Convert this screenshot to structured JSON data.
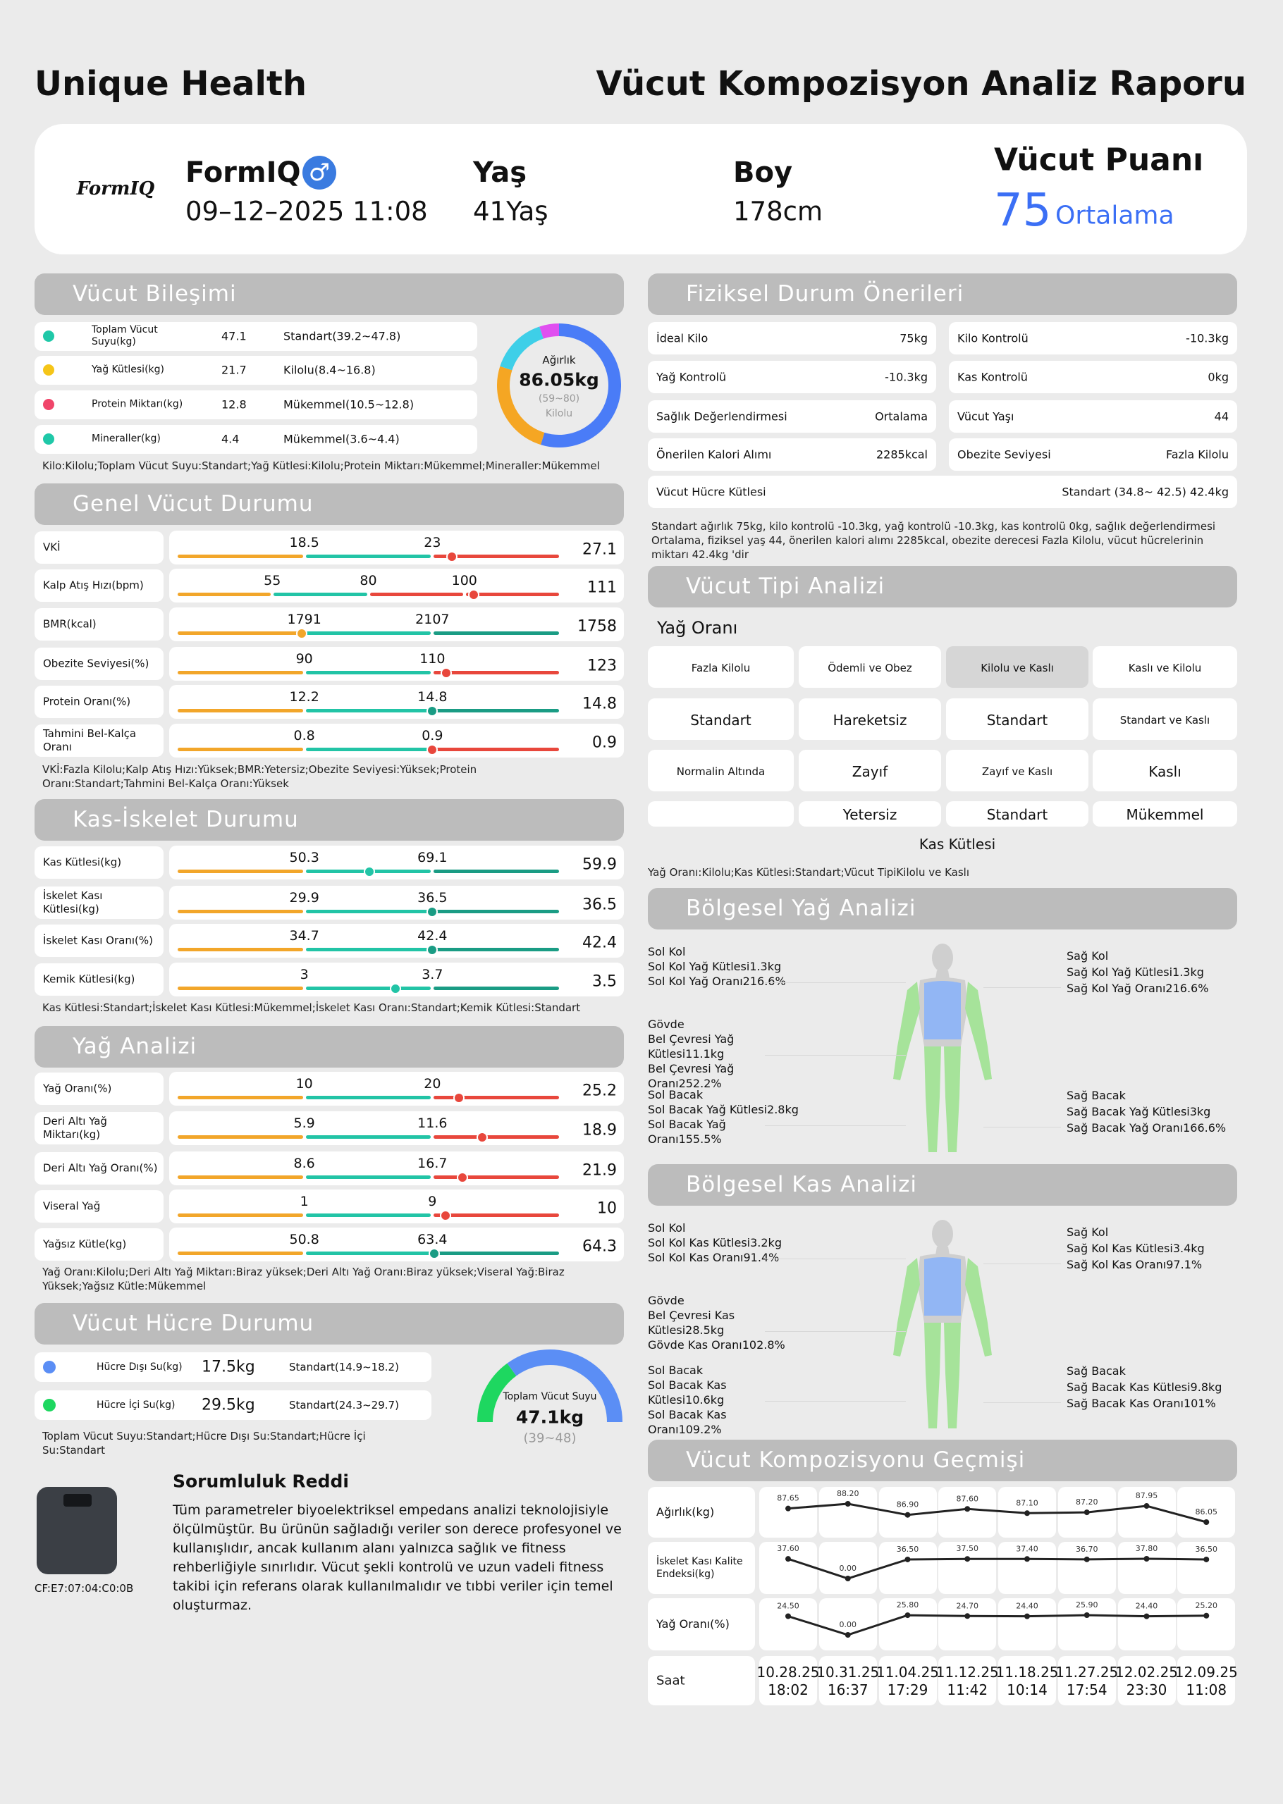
{
  "header": {
    "brand": "Unique Health",
    "title": "Vücut Kompozisyon Analiz Raporu"
  },
  "profile": {
    "logo": "FormIQ",
    "name": "FormIQ",
    "gender": "♂",
    "datetime": "09–12–2025 11:08",
    "age_label": "Yaş",
    "age": "41Yaş",
    "height_label": "Boy",
    "height": "178cm",
    "score_label": "Vücut Puanı",
    "score": 75,
    "score_level": "Ortalama"
  },
  "body_composition": {
    "title": "Vücut Bileşimi",
    "rows": [
      {
        "name": "Toplam Vücut Suyu(kg)",
        "value": 47.1,
        "status": "Standart(39.2~47.8)",
        "color": "#1fc8a8"
      },
      {
        "name": "Yağ Kütlesi(kg)",
        "value": 21.7,
        "status": "Kilolu(8.4~16.8)",
        "color": "#f5c518"
      },
      {
        "name": "Protein Miktarı(kg)",
        "value": 12.8,
        "status": "Mükemmel(10.5~12.8)",
        "color": "#f0456a"
      },
      {
        "name": "Mineraller(kg)",
        "value": 4.4,
        "status": "Mükemmel(3.6~4.4)",
        "color": "#1fc8a8"
      }
    ],
    "donut": {
      "label": "Ağırlık",
      "value": "86.05kg",
      "range": "(59~80)",
      "status": "Kilolu",
      "colors": [
        "#4a7cf7",
        "#f5a623",
        "#3ecfe8",
        "#e04ff0"
      ]
    },
    "summary": "Kilo:Kilolu;Toplam Vücut Suyu:Standart;Yağ Kütlesi:Kilolu;Protein Miktarı:Mükemmel;Mineraller:Mükemmel"
  },
  "general": {
    "title": "Genel Vücut Durumu",
    "rows": [
      {
        "name": "VKİ",
        "thresholds": [
          18.5,
          23
        ],
        "value": 27.1,
        "colors": [
          "#f2a62a",
          "#22c4a6",
          "#e8473c"
        ]
      },
      {
        "name": "Kalp Atış Hızı(bpm)",
        "thresholds": [
          55,
          80,
          100
        ],
        "value": 111,
        "colors": [
          "#f2a62a",
          "#22c4a6",
          "#e8473c",
          "#e8473c"
        ]
      },
      {
        "name": "BMR(kcal)",
        "thresholds": [
          1791,
          2107
        ],
        "value": 1758,
        "colors": [
          "#f2a62a",
          "#22c4a6",
          "#1a9c84"
        ]
      },
      {
        "name": "Obezite Seviyesi(%)",
        "thresholds": [
          90,
          110
        ],
        "value": 123,
        "colors": [
          "#f2a62a",
          "#22c4a6",
          "#e8473c"
        ]
      },
      {
        "name": "Protein Oranı(%)",
        "thresholds": [
          12.2,
          14.8
        ],
        "value": 14.8,
        "colors": [
          "#f2a62a",
          "#22c4a6",
          "#1a9c84"
        ]
      },
      {
        "name": "Tahmini Bel-Kalça Oranı",
        "thresholds": [
          0.8,
          0.9
        ],
        "value": 0.9,
        "colors": [
          "#f2a62a",
          "#22c4a6",
          "#e8473c"
        ]
      }
    ],
    "summary": "VKİ:Fazla Kilolu;Kalp Atış Hızı:Yüksek;BMR:Yetersiz;Obezite Seviyesi:Yüksek;Protein Oranı:Standart;Tahmini Bel-Kalça Oranı:Yüksek"
  },
  "muscle": {
    "title": "Kas-İskelet Durumu",
    "rows": [
      {
        "name": "Kas Kütlesi(kg)",
        "thresholds": [
          50.3,
          69.1
        ],
        "value": 59.9,
        "colors": [
          "#f2a62a",
          "#22c4a6",
          "#1a9c84"
        ]
      },
      {
        "name": "İskelet Kası Kütlesi(kg)",
        "thresholds": [
          29.9,
          36.5
        ],
        "value": 36.5,
        "colors": [
          "#f2a62a",
          "#22c4a6",
          "#1a9c84"
        ]
      },
      {
        "name": "İskelet Kası Oranı(%)",
        "thresholds": [
          34.7,
          42.4
        ],
        "value": 42.4,
        "colors": [
          "#f2a62a",
          "#22c4a6",
          "#1a9c84"
        ]
      },
      {
        "name": "Kemik Kütlesi(kg)",
        "thresholds": [
          3,
          3.7
        ],
        "value": 3.5,
        "colors": [
          "#f2a62a",
          "#22c4a6",
          "#1a9c84"
        ]
      }
    ],
    "summary": "Kas Kütlesi:Standart;İskelet Kası Kütlesi:Mükemmel;İskelet Kası Oranı:Standart;Kemik Kütlesi:Standart"
  },
  "fat": {
    "title": "Yağ Analizi",
    "rows": [
      {
        "name": "Yağ Oranı(%)",
        "thresholds": [
          10,
          20
        ],
        "value": 25.2,
        "colors": [
          "#f2a62a",
          "#22c4a6",
          "#e8473c"
        ]
      },
      {
        "name": "Deri Altı Yağ Miktarı(kg)",
        "thresholds": [
          5.9,
          11.6
        ],
        "value": 18.9,
        "colors": [
          "#f2a62a",
          "#22c4a6",
          "#e8473c"
        ]
      },
      {
        "name": "Deri Altı Yağ Oranı(%)",
        "thresholds": [
          8.6,
          16.7
        ],
        "value": 21.9,
        "colors": [
          "#f2a62a",
          "#22c4a6",
          "#e8473c"
        ]
      },
      {
        "name": "Viseral Yağ",
        "thresholds": [
          1,
          9
        ],
        "value": 10,
        "colors": [
          "#f2a62a",
          "#22c4a6",
          "#e8473c"
        ]
      },
      {
        "name": "Yağsız Kütle(kg)",
        "thresholds": [
          50.8,
          63.4
        ],
        "value": 64.3,
        "colors": [
          "#f2a62a",
          "#22c4a6",
          "#1a9c84"
        ]
      }
    ],
    "summary": "Yağ Oranı:Kilolu;Deri Altı Yağ Miktarı:Biraz yüksek;Deri Altı Yağ Oranı:Biraz yüksek;Viseral Yağ:Biraz Yüksek;Yağsız Kütle:Mükemmel"
  },
  "cell": {
    "title": "Vücut Hücre Durumu",
    "rows": [
      {
        "name": "Hücre Dışı Su(kg)",
        "value": "17.5kg",
        "status": "Standart(14.9~18.2)",
        "color": "#5b8ef5"
      },
      {
        "name": "Hücre İçi Su(kg)",
        "value": "29.5kg",
        "status": "Standart(24.3~29.7)",
        "color": "#1ed760"
      }
    ],
    "gauge": {
      "label": "Toplam Vücut Suyu",
      "value": "47.1kg",
      "range": "(39~48)"
    },
    "summary": "Toplam Vücut Suyu:Standart;Hücre Dışı Su:Standart;Hücre İçi Su:Standart"
  },
  "disclaimer": {
    "title": "Sorumluluk Reddi",
    "text": "Tüm parametreler biyoelektriksel empedans analizi teknolojisiyle ölçülmüştür. Bu ürünün sağladığı veriler son derece profesyonel ve kullanışlıdır, ancak kullanım alanı yalnızca sağlık ve fitness rehberliğiyle sınırlıdır. Vücut şekli kontrolü ve uzun vadeli fitness takibi için referans olarak kullanılmalıdır ve tıbbi veriler için temel oluşturmaz.",
    "device_id": "CF:E7:07:04:C0:0B"
  },
  "recommendations": {
    "title": "Fiziksel Durum Önerileri",
    "items": [
      {
        "label": "İdeal Kilo",
        "value": "75kg"
      },
      {
        "label": "Kilo Kontrolü",
        "value": "-10.3kg"
      },
      {
        "label": "Yağ Kontrolü",
        "value": "-10.3kg"
      },
      {
        "label": "Kas Kontrolü",
        "value": "0kg"
      },
      {
        "label": "Sağlık Değerlendirmesi",
        "value": "Ortalama"
      },
      {
        "label": "Vücut Yaşı",
        "value": 44
      },
      {
        "label": "Önerilen Kalori Alımı",
        "value": "2285kcal"
      },
      {
        "label": "Obezite Seviyesi",
        "value": "Fazla Kilolu"
      },
      {
        "label": "Vücut Hücre Kütlesi",
        "value": "Standart (34.8~ 42.5) 42.4kg"
      }
    ],
    "summary": "Standart ağırlık 75kg, kilo kontrolü -10.3kg, yağ kontrolü -10.3kg, kas kontrolü 0kg, sağlık değerlendirmesi Ortalama, fiziksel yaş 44, önerilen kalori alımı 2285kcal, obezite derecesi Fazla Kilolu, vücut hücrelerinin miktarı 42.4kg 'dir"
  },
  "body_type": {
    "title": "Vücut Tipi Analizi",
    "y_label": "Yağ Oranı",
    "grid": [
      [
        "Fazla Kilolu",
        "Ödemli ve Obez",
        "Kilolu ve Kaslı",
        "Kaslı ve Kilolu"
      ],
      [
        "Standart",
        "Hareketsiz",
        "Standart",
        "Standart ve Kaslı"
      ],
      [
        "Normalin Altında",
        "Zayıf",
        "Zayıf ve Kaslı",
        "Kaslı"
      ]
    ],
    "x_labels": [
      "Yetersiz",
      "Standart",
      "Mükemmel"
    ],
    "x_label": "Kas Kütlesi",
    "highlight": {
      "row": 0,
      "col": 2
    },
    "summary": "Yağ Oranı:Kilolu;Kas Kütlesi:Standart;Vücut TipiKilolu ve Kaslı"
  },
  "regional_fat": {
    "title": "Bölgesel Yağ Analizi",
    "left": [
      [
        "Sol Kol",
        "Sol Kol Yağ Kütlesi1.3kg",
        "Sol Kol Yağ Oranı216.6%"
      ],
      [
        "Gövde",
        "Bel Çevresi Yağ Kütlesi11.1kg",
        "Bel Çevresi Yağ Oranı252.2%"
      ],
      [
        "Sol Bacak",
        "Sol Bacak Yağ Kütlesi2.8kg",
        "Sol Bacak Yağ Oranı155.5%"
      ]
    ],
    "right": [
      [
        "Sağ Kol",
        "Sağ Kol Yağ Kütlesi1.3kg",
        "Sağ Kol Yağ Oranı216.6%"
      ],
      [
        "Sağ Bacak",
        "Sağ Bacak Yağ Kütlesi3kg",
        "Sağ Bacak Yağ Oranı166.6%"
      ]
    ]
  },
  "regional_muscle": {
    "title": "Bölgesel Kas Analizi",
    "left": [
      [
        "Sol Kol",
        "Sol Kol Kas Kütlesi3.2kg",
        "Sol Kol Kas Oranı91.4%"
      ],
      [
        "Gövde",
        "Bel Çevresi Kas Kütlesi28.5kg",
        "Gövde Kas Oranı102.8%"
      ],
      [
        "Sol Bacak",
        "Sol Bacak Kas Kütlesi10.6kg",
        "Sol Bacak Kas Oranı109.2%"
      ]
    ],
    "right": [
      [
        "Sağ Kol",
        "Sağ Kol Kas Kütlesi3.4kg",
        "Sağ Kol Kas Oranı97.1%"
      ],
      [
        "Sağ Bacak",
        "Sağ Bacak Kas Kütlesi9.8kg",
        "Sağ Bacak Kas Oranı101%"
      ]
    ]
  },
  "history": {
    "type": "line",
    "title": "Vücut Kompozisyonu Geçmişi",
    "series": [
      {
        "name": "Ağırlık(kg)",
        "values": [
          87.65,
          88.2,
          86.9,
          87.6,
          87.1,
          87.2,
          87.95,
          86.05
        ],
        "value_labels": [
          "87.65",
          "88.20",
          "86.90",
          "87.60",
          "87.10",
          "87.20",
          "87.95",
          "86.05"
        ]
      },
      {
        "name": "İskelet Kası Kalite Endeksi(kg)",
        "values": [
          37.6,
          0,
          36.5,
          37.5,
          37.4,
          36.7,
          37.8,
          36.5
        ],
        "value_labels": [
          "37.60",
          "0.00",
          "36.50",
          "37.50",
          "37.40",
          "36.70",
          "37.80",
          "36.50"
        ]
      },
      {
        "name": "Yağ Oranı(%)",
        "values": [
          24.5,
          0,
          25.8,
          24.7,
          24.4,
          25.9,
          24.4,
          25.2
        ],
        "value_labels": [
          "24.50",
          "0.00",
          "25.80",
          "24.70",
          "24.40",
          "25.90",
          "24.40",
          "25.20"
        ]
      }
    ],
    "x_label": "Saat",
    "x": [
      {
        "date": "10.28.25",
        "time": "18:02"
      },
      {
        "date": "10.31.25",
        "time": "16:37"
      },
      {
        "date": "11.04.25",
        "time": "17:29"
      },
      {
        "date": "11.12.25",
        "time": "11:42"
      },
      {
        "date": "11.18.25",
        "time": "10:14"
      },
      {
        "date": "11.27.25",
        "time": "17:54"
      },
      {
        "date": "12.02.25",
        "time": "23:30"
      },
      {
        "date": "12.09.25",
        "time": "11:08"
      }
    ]
  }
}
